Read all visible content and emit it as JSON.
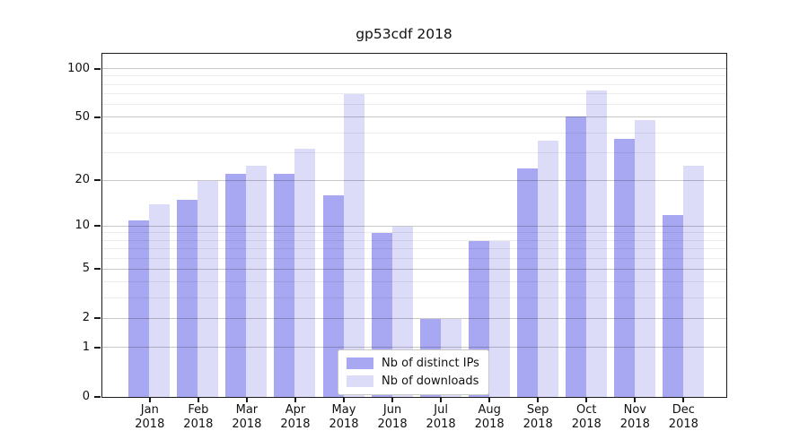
{
  "chart_data": {
    "type": "bar",
    "title": "gp53cdf 2018",
    "categories": [
      "Jan",
      "Feb",
      "Mar",
      "Apr",
      "May",
      "Jun",
      "Jul",
      "Aug",
      "Sep",
      "Oct",
      "Nov",
      "Dec"
    ],
    "year": "2018",
    "series": [
      {
        "name": "Nb of distinct IPs",
        "color": "#a8a8f2",
        "values": [
          11,
          15,
          22,
          22,
          16,
          9,
          2,
          8,
          24,
          51,
          37,
          12
        ]
      },
      {
        "name": "Nb of downloads",
        "color": "#dcdcf8",
        "values": [
          14,
          20,
          25,
          32,
          70,
          10,
          2,
          8,
          36,
          74,
          48,
          25
        ]
      }
    ],
    "xlabel": "",
    "ylabel": "",
    "yscale": "log1p",
    "ylim": [
      0,
      127
    ],
    "yticks": [
      0,
      1,
      2,
      5,
      10,
      20,
      50,
      100
    ],
    "minor_gridlines": [
      3,
      4,
      6,
      7,
      8,
      9,
      30,
      40,
      60,
      70,
      80,
      90
    ],
    "grid": "on",
    "legend_position": "lower center",
    "colors": {
      "bar_distinct_ips": "#a8a8f2",
      "bar_downloads": "#dcdcf8",
      "major_grid": "#c6c6c6",
      "minor_grid": "#ebebeb",
      "spine": "#1b1b1b",
      "background": "#ffffff"
    }
  }
}
